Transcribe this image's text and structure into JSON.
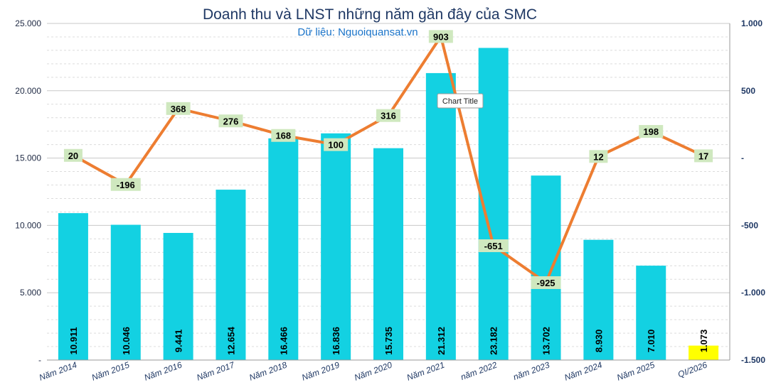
{
  "chart_data": {
    "type": "bar+line",
    "title": "Doanh thu và LNST những năm gần đây của SMC",
    "subtitle": "Dữ liệu: Nguoiquansat.vn",
    "categories": [
      "Năm 2014",
      "Năm 2015",
      "Năm 2016",
      "Năm 2017",
      "Năm 2018",
      "Năm 2019",
      "Năm 2020",
      "Năm 2021",
      "năm 2022",
      "năm 2023",
      "Năm 2024",
      "Năm 2025",
      "QI/2026"
    ],
    "series": [
      {
        "type": "bar",
        "axis": "left",
        "values": [
          10911,
          10046,
          9441,
          12654,
          16466,
          16836,
          15735,
          21312,
          23182,
          13702,
          8930,
          7010,
          1073
        ],
        "labels": [
          "10.911",
          "10.046",
          "9.441",
          "12.654",
          "16.466",
          "16.836",
          "15.735",
          "21.312",
          "23.182",
          "13.702",
          "8.930",
          "7.010",
          "1.073"
        ],
        "color": "#13d1e2",
        "highlight_color": "#ffff00",
        "highlight_index": 12
      },
      {
        "type": "line",
        "axis": "right",
        "values": [
          20,
          -196,
          368,
          276,
          168,
          100,
          316,
          903,
          -651,
          -925,
          12,
          198,
          17
        ],
        "labels": [
          "20",
          "-196",
          "368",
          "276",
          "168",
          "100",
          "316",
          "903",
          "-651",
          "-925",
          "12",
          "198",
          "17"
        ],
        "color": "#ed7d31",
        "label_bg": "#cfe8bf"
      }
    ],
    "y_left": {
      "min": 0,
      "max": 25000,
      "ticks": [
        0,
        5000,
        10000,
        15000,
        20000,
        25000
      ],
      "tick_labels": [
        "-",
        "5.000",
        "10.000",
        "15.000",
        "20.000",
        "25.000"
      ]
    },
    "y_right": {
      "min": -1500,
      "max": 1000,
      "ticks": [
        -1500,
        -1000,
        -500,
        0,
        500,
        1000
      ],
      "tick_labels": [
        "-1.500",
        "-1.000",
        "-500",
        "-",
        "500",
        "1.000"
      ]
    },
    "grid": true,
    "tooltip": "Chart Title"
  }
}
